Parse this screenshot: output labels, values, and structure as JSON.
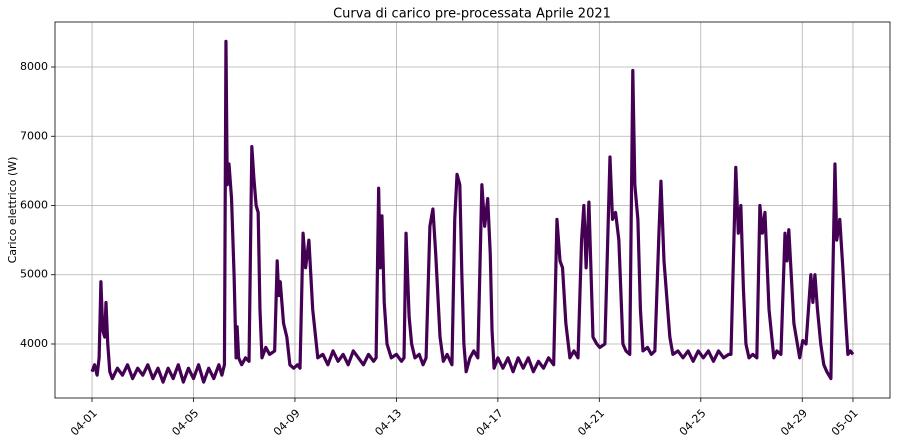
{
  "chart_data": {
    "type": "line",
    "title": "Curva di carico pre-processata Aprile 2021",
    "y_label": "Carico elettrico (W)",
    "color": "#440154",
    "grid": true,
    "x": [
      0,
      0.1,
      0.2,
      0.28,
      0.35,
      0.42,
      0.5,
      0.55,
      0.62,
      0.7,
      0.8,
      1.0,
      1.2,
      1.4,
      1.6,
      1.8,
      2.0,
      2.2,
      2.4,
      2.6,
      2.8,
      3.0,
      3.2,
      3.4,
      3.6,
      3.8,
      4.0,
      4.2,
      4.4,
      4.6,
      4.8,
      5.0,
      5.12,
      5.22,
      5.28,
      5.33,
      5.4,
      5.5,
      5.6,
      5.68,
      5.72,
      5.78,
      5.9,
      6.05,
      6.19,
      6.3,
      6.38,
      6.47,
      6.55,
      6.62,
      6.7,
      6.85,
      7.0,
      7.2,
      7.3,
      7.36,
      7.42,
      7.55,
      7.68,
      7.8,
      7.95,
      8.1,
      8.2,
      8.32,
      8.42,
      8.55,
      8.7,
      8.9,
      9.1,
      9.3,
      9.5,
      9.7,
      9.9,
      10.1,
      10.3,
      10.5,
      10.7,
      10.9,
      11.1,
      11.2,
      11.3,
      11.36,
      11.43,
      11.52,
      11.63,
      11.8,
      12.0,
      12.2,
      12.3,
      12.38,
      12.5,
      12.6,
      12.73,
      12.9,
      13.05,
      13.17,
      13.32,
      13.44,
      13.55,
      13.72,
      13.85,
      14.0,
      14.19,
      14.3,
      14.39,
      14.5,
      14.58,
      14.66,
      14.75,
      14.9,
      15.05,
      15.21,
      15.37,
      15.48,
      15.6,
      15.7,
      15.77,
      15.85,
      16.0,
      16.2,
      16.4,
      16.6,
      16.8,
      17.0,
      17.2,
      17.4,
      17.6,
      17.8,
      18.0,
      18.2,
      18.33,
      18.45,
      18.55,
      18.68,
      18.84,
      19.0,
      19.16,
      19.3,
      19.39,
      19.48,
      19.59,
      19.75,
      19.9,
      20.02,
      20.22,
      20.42,
      20.52,
      20.64,
      20.77,
      20.93,
      21.05,
      21.2,
      21.32,
      21.4,
      21.52,
      21.62,
      21.72,
      21.9,
      22.05,
      22.19,
      22.35,
      22.43,
      22.55,
      22.78,
      22.9,
      23.1,
      23.3,
      23.5,
      23.7,
      23.9,
      24.1,
      24.3,
      24.5,
      24.7,
      24.9,
      25.1,
      25.19,
      25.38,
      25.48,
      25.58,
      25.68,
      25.78,
      25.9,
      26.05,
      26.21,
      26.33,
      26.43,
      26.53,
      26.69,
      26.88,
      27.0,
      27.16,
      27.32,
      27.4,
      27.47,
      27.67,
      27.9,
      28.02,
      28.15,
      28.34,
      28.42,
      28.5,
      28.6,
      28.73,
      28.85,
      28.97,
      29.13,
      29.29,
      29.36,
      29.48,
      29.6,
      29.72,
      29.8,
      29.9,
      30.0
    ],
    "values": [
      3600,
      3700,
      3550,
      3800,
      4900,
      4200,
      4100,
      4600,
      4000,
      3600,
      3500,
      3650,
      3550,
      3700,
      3500,
      3650,
      3550,
      3700,
      3500,
      3650,
      3450,
      3650,
      3500,
      3700,
      3450,
      3650,
      3500,
      3700,
      3450,
      3650,
      3500,
      3700,
      3550,
      3700,
      8370,
      6300,
      6600,
      6100,
      5000,
      3800,
      4250,
      3800,
      3700,
      3800,
      3750,
      6850,
      6400,
      6000,
      5900,
      4500,
      3800,
      3950,
      3850,
      3900,
      5200,
      4700,
      4900,
      4300,
      4100,
      3700,
      3650,
      3700,
      3650,
      5600,
      5100,
      5500,
      4500,
      3800,
      3850,
      3700,
      3900,
      3750,
      3850,
      3700,
      3900,
      3800,
      3700,
      3850,
      3750,
      3800,
      6250,
      5100,
      5850,
      4600,
      4000,
      3800,
      3850,
      3750,
      3800,
      5600,
      4400,
      4000,
      3800,
      3850,
      3700,
      3800,
      5700,
      5950,
      5300,
      4100,
      3750,
      3850,
      3700,
      5800,
      6450,
      6300,
      5000,
      4000,
      3600,
      3800,
      3900,
      3800,
      6300,
      5700,
      6100,
      5300,
      4200,
      3650,
      3800,
      3650,
      3800,
      3600,
      3800,
      3650,
      3800,
      3600,
      3750,
      3650,
      3800,
      3700,
      5800,
      5200,
      5100,
      4300,
      3800,
      3900,
      3800,
      5500,
      6000,
      5100,
      6050,
      4100,
      4000,
      3950,
      4000,
      6700,
      5800,
      5900,
      5500,
      4000,
      3900,
      3850,
      7950,
      6300,
      5800,
      4500,
      3900,
      3950,
      3850,
      3900,
      5600,
      6350,
      5200,
      4100,
      3850,
      3900,
      3800,
      3900,
      3750,
      3900,
      3800,
      3900,
      3750,
      3900,
      3800,
      3850,
      3850,
      6550,
      5600,
      6000,
      4800,
      4000,
      3800,
      3850,
      3800,
      6000,
      5600,
      5900,
      4500,
      3800,
      3900,
      3850,
      5600,
      5200,
      5650,
      4300,
      3800,
      4050,
      4000,
      5000,
      4600,
      5000,
      4500,
      4000,
      3700,
      3600,
      3500,
      6600,
      5500,
      5800,
      5100,
      4300,
      3850,
      3900,
      3850
    ],
    "xlim": [
      -1.46,
      31.46
    ],
    "xticks": [
      {
        "value": 0,
        "label": "04-01"
      },
      {
        "value": 4,
        "label": "04-05"
      },
      {
        "value": 8,
        "label": "04-09"
      },
      {
        "value": 12,
        "label": "04-13"
      },
      {
        "value": 16,
        "label": "04-17"
      },
      {
        "value": 20,
        "label": "04-21"
      },
      {
        "value": 24,
        "label": "04-25"
      },
      {
        "value": 28,
        "label": "04-29"
      },
      {
        "value": 30,
        "label": "05-01"
      }
    ],
    "ylim": [
      3220,
      8650
    ],
    "yticks": [
      4000,
      5000,
      6000,
      7000,
      8000
    ]
  }
}
